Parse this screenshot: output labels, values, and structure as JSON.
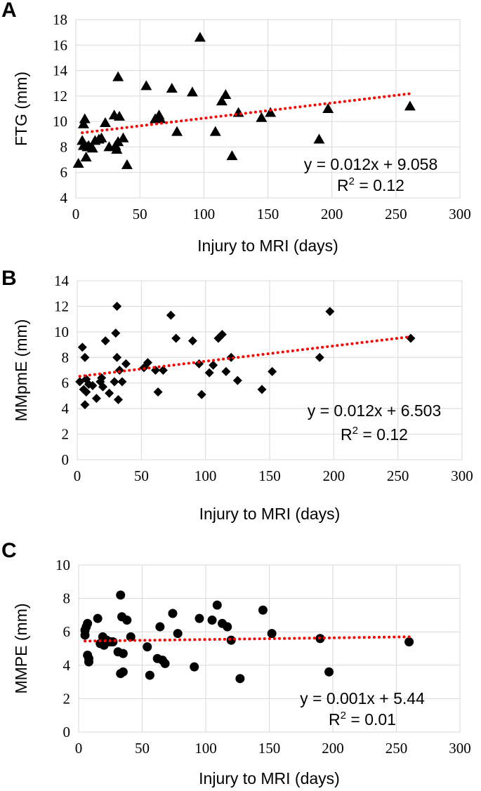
{
  "chart_data": [
    {
      "type": "scatter",
      "panel": "A",
      "marker": "triangle",
      "xlabel": "Injury to MRI (days)",
      "ylabel": "FTG (mm)",
      "xlim": [
        0,
        300
      ],
      "ylim": [
        4,
        18
      ],
      "x_ticks": [
        0,
        50,
        100,
        150,
        200,
        250,
        300
      ],
      "y_ticks": [
        4,
        6,
        8,
        10,
        12,
        14,
        16,
        18
      ],
      "grid": true,
      "equation": "y = 0.012x + 9.058",
      "r2_label": "R",
      "r2_value": " = 0.12",
      "trendline": {
        "slope": 0.012,
        "intercept": 9.058,
        "x_range": [
          5,
          261
        ]
      },
      "points": [
        [
          2,
          6.7
        ],
        [
          5,
          8.5
        ],
        [
          6,
          8.1
        ],
        [
          6,
          9.8
        ],
        [
          7,
          10.2
        ],
        [
          8,
          7.2
        ],
        [
          9,
          8.0
        ],
        [
          10,
          8.1
        ],
        [
          13,
          7.9
        ],
        [
          15,
          8.5
        ],
        [
          18,
          8.6
        ],
        [
          20,
          8.7
        ],
        [
          23,
          9.9
        ],
        [
          26,
          8.0
        ],
        [
          30,
          10.5
        ],
        [
          31,
          8.1
        ],
        [
          32,
          7.8
        ],
        [
          33,
          8.4
        ],
        [
          33,
          13.5
        ],
        [
          34,
          10.4
        ],
        [
          37,
          8.7
        ],
        [
          40,
          6.6
        ],
        [
          55,
          12.8
        ],
        [
          62,
          10.2
        ],
        [
          65,
          10.5
        ],
        [
          66,
          10.2
        ],
        [
          75,
          12.6
        ],
        [
          79,
          9.2
        ],
        [
          91,
          12.3
        ],
        [
          97,
          16.6
        ],
        [
          109,
          9.2
        ],
        [
          114,
          11.6
        ],
        [
          117,
          12.1
        ],
        [
          122,
          7.3
        ],
        [
          127,
          10.7
        ],
        [
          145,
          10.3
        ],
        [
          152,
          10.7
        ],
        [
          190,
          8.6
        ],
        [
          197,
          11.0
        ],
        [
          261,
          11.2
        ]
      ]
    },
    {
      "type": "scatter",
      "panel": "B",
      "marker": "diamond",
      "xlabel": "Injury to MRI (days)",
      "ylabel": "MMpmE (mm)",
      "xlim": [
        0,
        300
      ],
      "ylim": [
        0,
        14
      ],
      "x_ticks": [
        0,
        50,
        100,
        150,
        200,
        250,
        300
      ],
      "y_ticks": [
        0,
        2,
        4,
        6,
        8,
        10,
        12,
        14
      ],
      "grid": true,
      "equation": "y = 0.012x + 6.503",
      "r2_label": "R",
      "r2_value": " = 0.12",
      "trendline": {
        "slope": 0.012,
        "intercept": 6.503,
        "x_range": [
          2,
          260
        ]
      },
      "points": [
        [
          2,
          6.1
        ],
        [
          4,
          8.8
        ],
        [
          5,
          5.5
        ],
        [
          6,
          4.3
        ],
        [
          6,
          8.0
        ],
        [
          7,
          5.3
        ],
        [
          7,
          6.3
        ],
        [
          9,
          5.9
        ],
        [
          12,
          5.8
        ],
        [
          15,
          4.8
        ],
        [
          18,
          6.1
        ],
        [
          19,
          6.4
        ],
        [
          20,
          5.7
        ],
        [
          22,
          9.3
        ],
        [
          25,
          5.2
        ],
        [
          29,
          6.1
        ],
        [
          30,
          9.9
        ],
        [
          31,
          12.0
        ],
        [
          31,
          8.0
        ],
        [
          32,
          4.7
        ],
        [
          33,
          7.0
        ],
        [
          35,
          6.1
        ],
        [
          38,
          7.5
        ],
        [
          52,
          7.2
        ],
        [
          55,
          7.6
        ],
        [
          61,
          7.0
        ],
        [
          63,
          5.3
        ],
        [
          67,
          7.0
        ],
        [
          73,
          11.3
        ],
        [
          77,
          9.5
        ],
        [
          90,
          9.3
        ],
        [
          95,
          7.5
        ],
        [
          97,
          5.1
        ],
        [
          103,
          6.8
        ],
        [
          106,
          7.4
        ],
        [
          110,
          9.5
        ],
        [
          113,
          9.8
        ],
        [
          116,
          6.9
        ],
        [
          120,
          8.0
        ],
        [
          125,
          6.2
        ],
        [
          144,
          5.5
        ],
        [
          152,
          6.9
        ],
        [
          189,
          8.0
        ],
        [
          197,
          11.6
        ],
        [
          260,
          9.5
        ]
      ]
    },
    {
      "type": "scatter",
      "panel": "C",
      "marker": "circle",
      "xlabel": "Injury to MRI (days)",
      "ylabel": "MMPE (mm)",
      "xlim": [
        0,
        300
      ],
      "ylim": [
        0,
        10
      ],
      "x_ticks": [
        0,
        50,
        100,
        150,
        200,
        250,
        300
      ],
      "y_ticks": [
        0,
        2,
        4,
        6,
        8,
        10
      ],
      "grid": true,
      "equation": "y = 0.001x + 5.44",
      "r2_label": "R",
      "r2_value": " = 0.01",
      "trendline": {
        "slope": 0.001,
        "intercept": 5.44,
        "x_range": [
          5,
          260
        ]
      },
      "points": [
        [
          5,
          6.1
        ],
        [
          5,
          5.8
        ],
        [
          6,
          6.3
        ],
        [
          7,
          6.5
        ],
        [
          7,
          4.6
        ],
        [
          8,
          4.4
        ],
        [
          8,
          4.2
        ],
        [
          15,
          6.8
        ],
        [
          17,
          5.3
        ],
        [
          19,
          5.7
        ],
        [
          20,
          5.2
        ],
        [
          22,
          5.5
        ],
        [
          25,
          5.4
        ],
        [
          27,
          5.4
        ],
        [
          31,
          4.8
        ],
        [
          33,
          8.2
        ],
        [
          33,
          3.5
        ],
        [
          34,
          6.9
        ],
        [
          35,
          4.7
        ],
        [
          35,
          3.6
        ],
        [
          38,
          6.7
        ],
        [
          41,
          5.7
        ],
        [
          54,
          5.1
        ],
        [
          56,
          3.4
        ],
        [
          62,
          4.4
        ],
        [
          64,
          6.3
        ],
        [
          66,
          4.3
        ],
        [
          68,
          4.1
        ],
        [
          74,
          7.1
        ],
        [
          78,
          5.9
        ],
        [
          91,
          3.9
        ],
        [
          95,
          6.8
        ],
        [
          105,
          6.7
        ],
        [
          109,
          7.6
        ],
        [
          113,
          6.5
        ],
        [
          117,
          6.3
        ],
        [
          120,
          5.5
        ],
        [
          127,
          3.2
        ],
        [
          145,
          7.3
        ],
        [
          152,
          5.9
        ],
        [
          190,
          5.6
        ],
        [
          197,
          3.6
        ],
        [
          260,
          5.4
        ]
      ]
    }
  ]
}
